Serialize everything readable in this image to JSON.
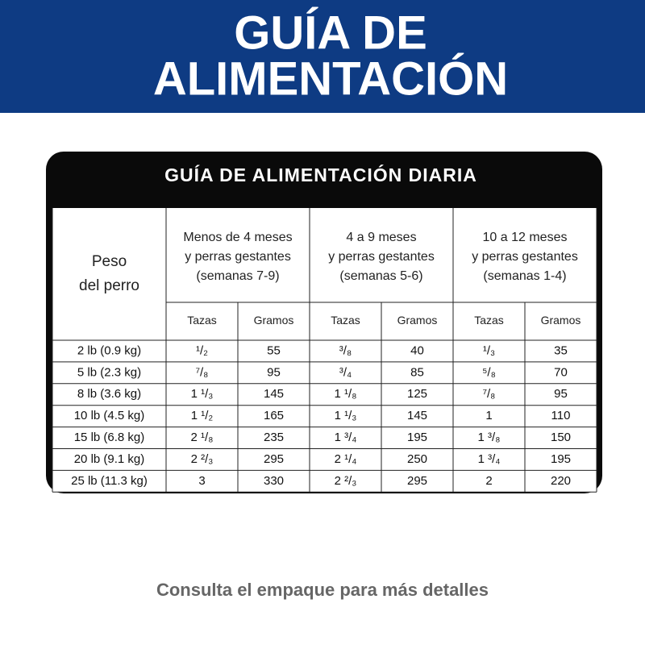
{
  "header": {
    "title_lines": [
      "GUÍA DE",
      "ALIMENTACIÓN"
    ]
  },
  "table": {
    "title": "GUÍA DE ALIMENTACIÓN DIARIA",
    "weight_header": [
      "Peso",
      "del perro"
    ],
    "groups": [
      [
        "Menos de 4 meses",
        "y perras gestantes",
        "(semanas 7-9)"
      ],
      [
        "4 a 9 meses",
        "y perras gestantes",
        "(semanas 5-6)"
      ],
      [
        "10 a 12 meses",
        "y perras gestantes",
        "(semanas 1-4)"
      ]
    ],
    "subheaders": [
      "Tazas",
      "Gramos",
      "Tazas",
      "Gramos",
      "Tazas",
      "Gramos"
    ],
    "rows": [
      [
        "2 lb (0.9 kg)",
        "¹/₂",
        55,
        "³/₈",
        40,
        "¹/₃",
        35
      ],
      [
        "5 lb (2.3 kg)",
        "⁷/₈",
        95,
        "³/₄",
        85,
        "⁵/₈",
        70
      ],
      [
        "8 lb (3.6 kg)",
        "1 ¹/₃",
        145,
        "1 ¹/₈",
        125,
        "⁷/₈",
        95
      ],
      [
        "10 lb (4.5 kg)",
        "1 ¹/₂",
        165,
        "1 ¹/₃",
        145,
        "1",
        110
      ],
      [
        "15 lb (6.8 kg)",
        "2 ¹/₈",
        235,
        "1 ³/₄",
        195,
        "1 ³/₈",
        150
      ],
      [
        "20 lb (9.1 kg)",
        "2 ²/₃",
        295,
        "2 ¹/₄",
        250,
        "1 ³/₄",
        195
      ],
      [
        "25 lb (11.3 kg)",
        "3",
        330,
        "2 ²/₃",
        295,
        "2",
        220
      ]
    ]
  },
  "footer": "Consulta el empaque para más detalles"
}
